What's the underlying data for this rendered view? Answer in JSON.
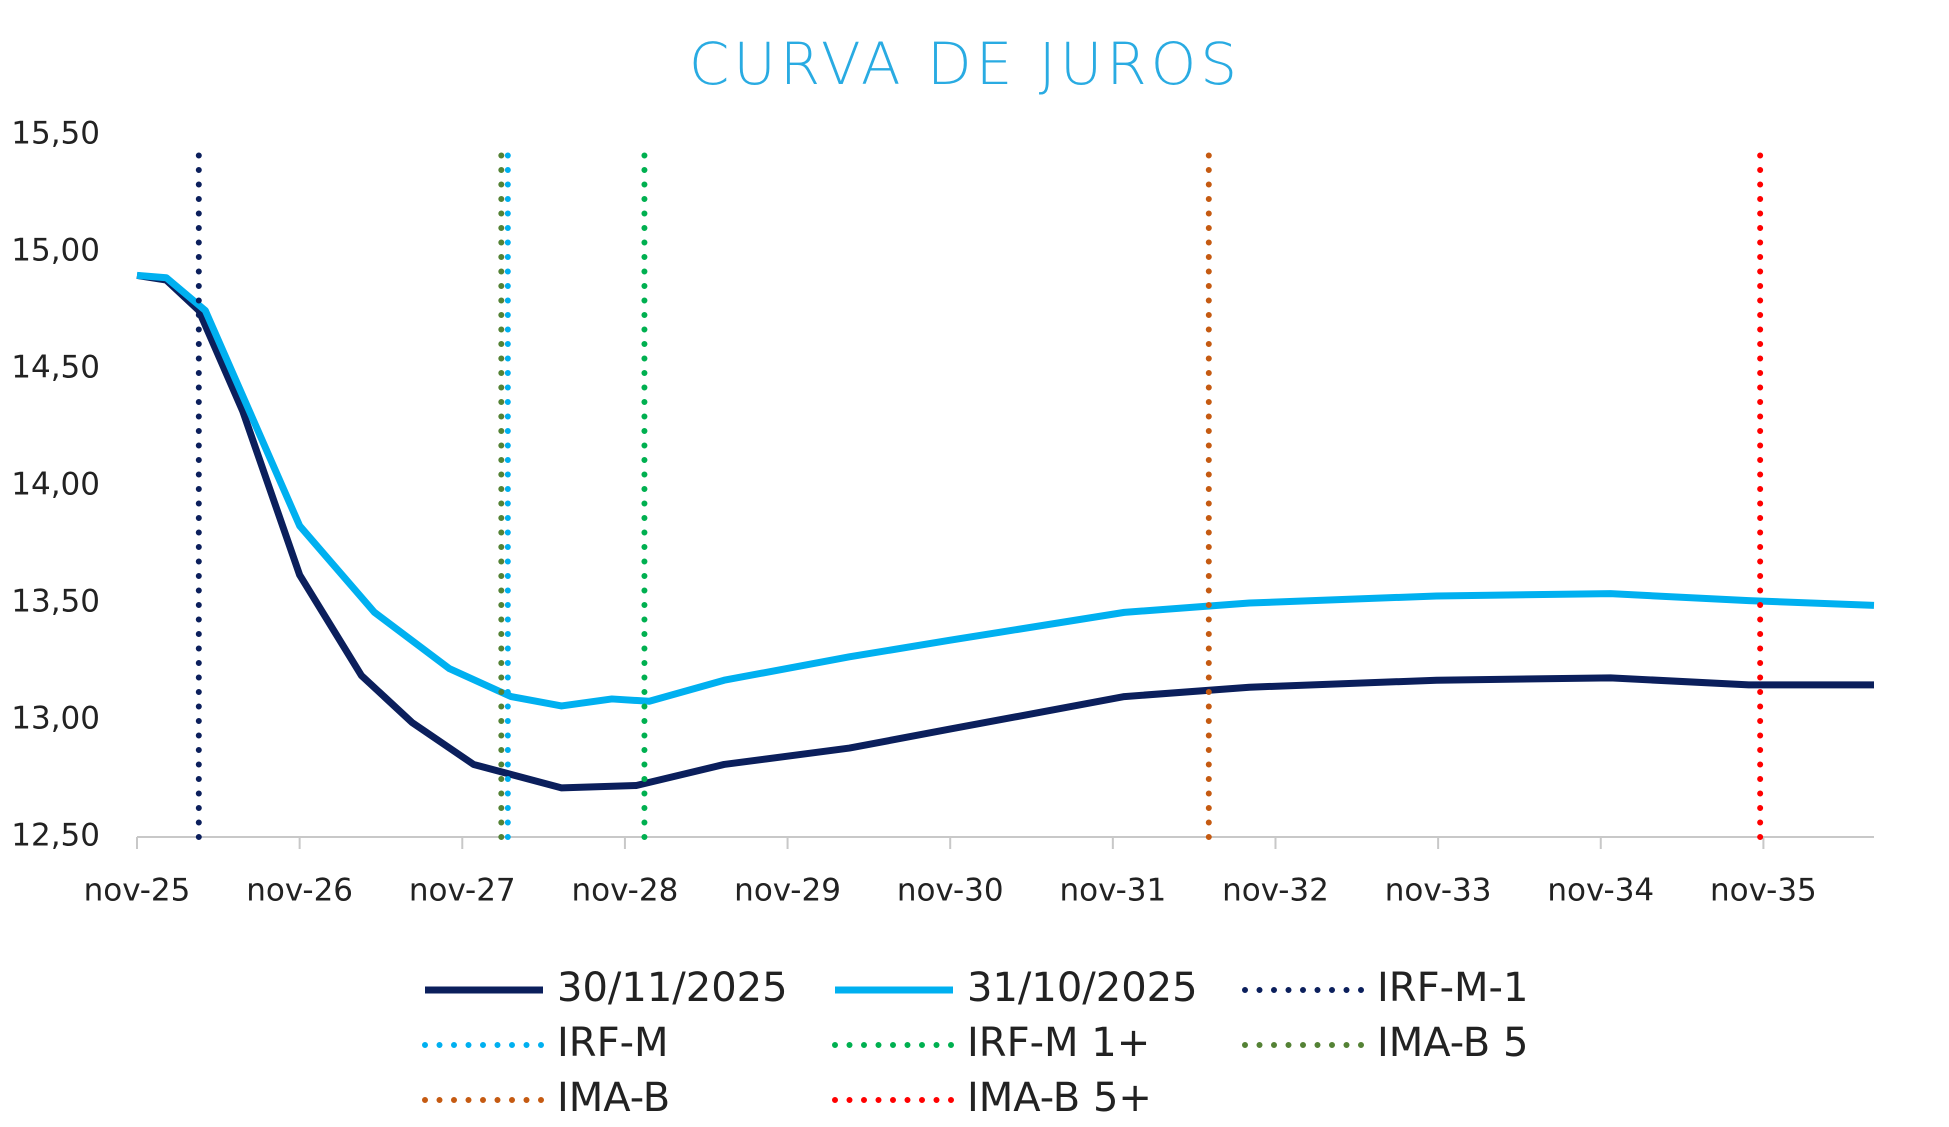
{
  "chart_data": {
    "type": "line",
    "title": "CURVA DE JUROS",
    "xlim": [
      2025.83,
      2036.51
    ],
    "xticks": [
      {
        "value": 2025.83,
        "label": "nov-25"
      },
      {
        "value": 2026.83,
        "label": "nov-26"
      },
      {
        "value": 2027.83,
        "label": "nov-27"
      },
      {
        "value": 2028.83,
        "label": "nov-28"
      },
      {
        "value": 2029.83,
        "label": "nov-29"
      },
      {
        "value": 2030.83,
        "label": "nov-30"
      },
      {
        "value": 2031.83,
        "label": "nov-31"
      },
      {
        "value": 2032.83,
        "label": "nov-32"
      },
      {
        "value": 2033.83,
        "label": "nov-33"
      },
      {
        "value": 2034.83,
        "label": "nov-34"
      },
      {
        "value": 2035.83,
        "label": "nov-35"
      }
    ],
    "ylim": [
      12.5,
      15.5
    ],
    "yticks": [
      {
        "value": 12.5,
        "label": "12,50"
      },
      {
        "value": 13,
        "label": "13,00"
      },
      {
        "value": 13.5,
        "label": "13,50"
      },
      {
        "value": 14,
        "label": "14,00"
      },
      {
        "value": 14.5,
        "label": "14,50"
      },
      {
        "value": 15,
        "label": "15,00"
      },
      {
        "value": 15.5,
        "label": "15,50"
      }
    ],
    "grid": false,
    "legend": "bottom",
    "series": [
      {
        "name": "30/11/2025",
        "color": "#0b1f5c",
        "style": "solid",
        "x": [
          2025.83,
          2026.01,
          2026.21,
          2026.48,
          2026.83,
          2027.21,
          2027.52,
          2027.9,
          2028.44,
          2028.9,
          2029.44,
          2030.21,
          2030.82,
          2031.9,
          2032.67,
          2033.82,
          2034.89,
          2035.74,
          2036.51
        ],
        "values": [
          14.9,
          14.88,
          14.75,
          14.32,
          13.62,
          13.19,
          12.99,
          12.81,
          12.71,
          12.72,
          12.81,
          12.88,
          12.96,
          13.1,
          13.14,
          13.17,
          13.18,
          13.15,
          13.15
        ]
      },
      {
        "name": "31/10/2025",
        "color": "#00b0f0",
        "style": "solid",
        "x": [
          2025.83,
          2026.01,
          2026.25,
          2026.83,
          2027.29,
          2027.75,
          2028.13,
          2028.44,
          2028.75,
          2028.98,
          2029.44,
          2030.21,
          2030.82,
          2031.9,
          2032.67,
          2033.82,
          2034.89,
          2035.74,
          2036.51
        ],
        "values": [
          14.9,
          14.89,
          14.75,
          13.83,
          13.46,
          13.22,
          13.1,
          13.06,
          13.09,
          13.08,
          13.17,
          13.27,
          13.34,
          13.46,
          13.5,
          13.53,
          13.54,
          13.51,
          13.49
        ]
      },
      {
        "name": "IRF-M-1",
        "color": "#0b1f5c",
        "style": "dotted",
        "x": [
          2026.21,
          2026.21
        ],
        "values": [
          12.5,
          15.45
        ]
      },
      {
        "name": "IRF-M",
        "color": "#00b0f0",
        "style": "dotted",
        "x": [
          2028.11,
          2028.11
        ],
        "values": [
          12.5,
          15.45
        ]
      },
      {
        "name": "IRF-M 1+",
        "color": "#00b050",
        "style": "dotted",
        "x": [
          2028.95,
          2028.95
        ],
        "values": [
          12.5,
          15.45
        ]
      },
      {
        "name": "IMA-B 5",
        "color": "#548235",
        "style": "dotted",
        "x": [
          2028.07,
          2028.07
        ],
        "values": [
          12.5,
          15.45
        ]
      },
      {
        "name": "IMA-B",
        "color": "#c55a11",
        "style": "dotted",
        "x": [
          2032.42,
          2032.42
        ],
        "values": [
          12.5,
          15.45
        ]
      },
      {
        "name": "IMA-B 5+",
        "color": "#ff0000",
        "style": "dotted",
        "x": [
          2035.81,
          2035.81
        ],
        "values": [
          12.5,
          15.45
        ]
      }
    ]
  }
}
